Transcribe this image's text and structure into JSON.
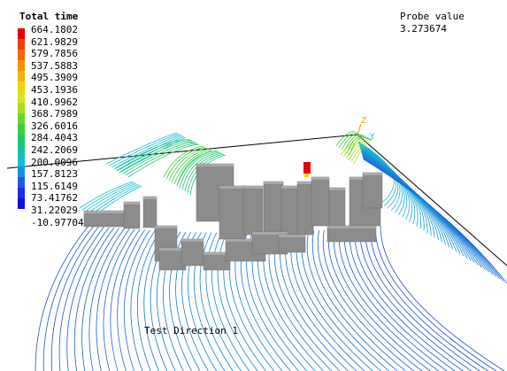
{
  "legend": {
    "title": "Total time",
    "labels": [
      "664.1802",
      "621.9829",
      "579.7856",
      "537.5883",
      "495.3909",
      "453.1936",
      "410.9962",
      "368.7989",
      "326.6016",
      "284.4043",
      "242.2069",
      "200.0096",
      "157.8123",
      "115.6149",
      "73.41762",
      "31.22029",
      "-10.97704"
    ],
    "colors": [
      "#e60000",
      "#ee4000",
      "#f06b00",
      "#f59200",
      "#f3b300",
      "#f0d400",
      "#d9e51a",
      "#a6e01a",
      "#6fd627",
      "#3ccf3c",
      "#1fc86e",
      "#14c49e",
      "#18bad0",
      "#1c8fe0",
      "#2059e6",
      "#1c2ee8",
      "#1010e6"
    ]
  },
  "probe": {
    "title": "Probe value",
    "value": "3.273674"
  },
  "viewport": {
    "caption": "Test Direction 1",
    "axis_label_z": "Z",
    "axis_label_y": "Y"
  },
  "colors": {
    "building": "#8c8c8c",
    "building_top": "#a8a8a8",
    "streamline_near": "#1a1ad8",
    "streamline_far": "#18c0d8",
    "ground_line": "#000000"
  }
}
